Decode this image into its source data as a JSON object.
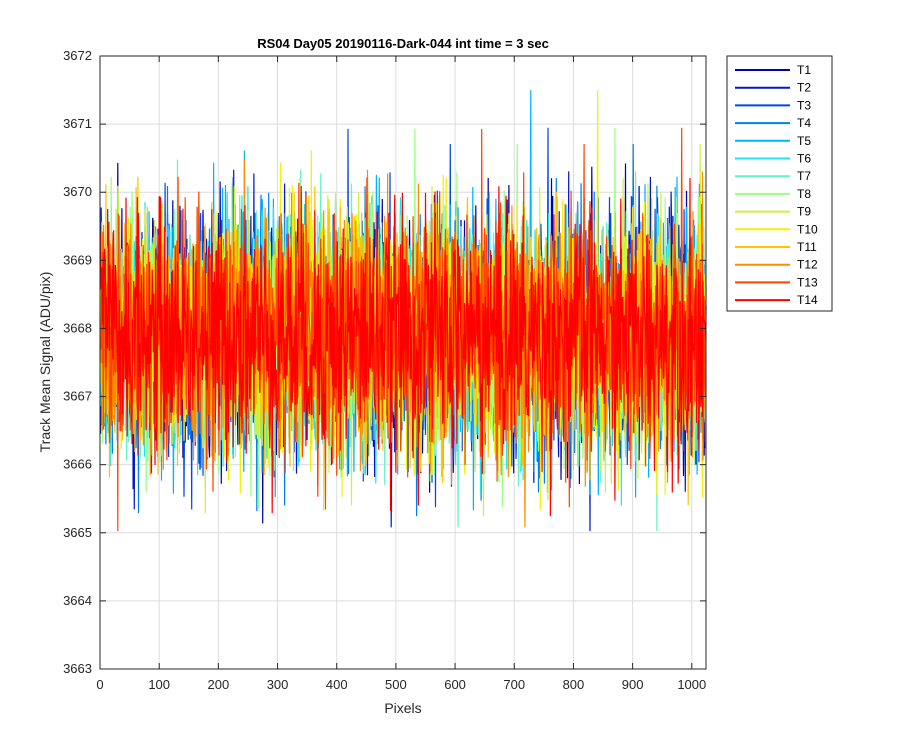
{
  "chart_data": {
    "type": "line",
    "title": "RS04 Day05 20190116-Dark-044 int time = 3 sec",
    "xlabel": "Pixels",
    "ylabel": "Track Mean Signal (ADU/pix)",
    "xlim": [
      0,
      1024
    ],
    "ylim": [
      3663,
      3672
    ],
    "xticks": [
      0,
      100,
      200,
      300,
      400,
      500,
      600,
      700,
      800,
      900,
      1000
    ],
    "yticks": [
      3663,
      3664,
      3665,
      3666,
      3667,
      3668,
      3669,
      3670,
      3671,
      3672
    ],
    "grid": true,
    "legend_position": "outside-top-right",
    "n_points": 1024,
    "series": [
      {
        "name": "T1",
        "color": "#0000b3",
        "mean": 3667.9,
        "std": 0.85
      },
      {
        "name": "T2",
        "color": "#0018cc",
        "mean": 3667.9,
        "std": 0.85
      },
      {
        "name": "T3",
        "color": "#0047e6",
        "mean": 3667.9,
        "std": 0.85
      },
      {
        "name": "T4",
        "color": "#0080f0",
        "mean": 3667.9,
        "std": 0.85
      },
      {
        "name": "T5",
        "color": "#00b3ff",
        "mean": 3667.9,
        "std": 0.85
      },
      {
        "name": "T6",
        "color": "#1ee6f0",
        "mean": 3667.9,
        "std": 0.85
      },
      {
        "name": "T7",
        "color": "#66f2c8",
        "mean": 3667.9,
        "std": 0.85
      },
      {
        "name": "T8",
        "color": "#99ff80",
        "mean": 3667.9,
        "std": 0.85
      },
      {
        "name": "T9",
        "color": "#ccf23c",
        "mean": 3667.9,
        "std": 0.85
      },
      {
        "name": "T10",
        "color": "#f2f200",
        "mean": 3667.9,
        "std": 0.85
      },
      {
        "name": "T11",
        "color": "#ffc400",
        "mean": 3667.9,
        "std": 0.85
      },
      {
        "name": "T12",
        "color": "#ff8c00",
        "mean": 3667.9,
        "std": 0.85
      },
      {
        "name": "T13",
        "color": "#ff4400",
        "mean": 3667.9,
        "std": 0.85
      },
      {
        "name": "T14",
        "color": "#ff0000",
        "mean": 3667.9,
        "std": 0.85
      }
    ]
  }
}
